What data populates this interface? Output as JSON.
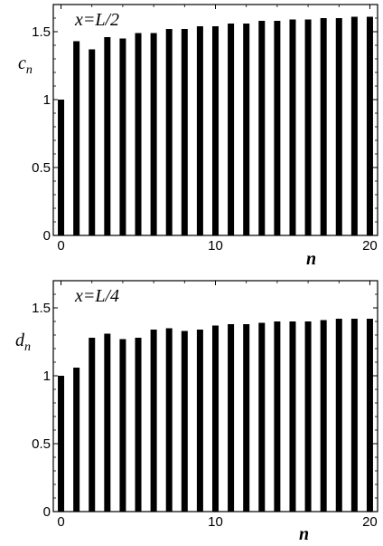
{
  "chart_data": [
    {
      "type": "bar",
      "annotation": "x=L/2",
      "ylabel": {
        "main": "c",
        "sub": "n"
      },
      "xlabel": "n",
      "x": [
        0,
        1,
        2,
        3,
        4,
        5,
        6,
        7,
        8,
        9,
        10,
        11,
        12,
        13,
        14,
        15,
        16,
        17,
        18,
        19,
        20
      ],
      "values": [
        1.0,
        1.43,
        1.37,
        1.46,
        1.45,
        1.49,
        1.49,
        1.52,
        1.52,
        1.54,
        1.54,
        1.56,
        1.56,
        1.58,
        1.58,
        1.59,
        1.59,
        1.6,
        1.6,
        1.61,
        1.61
      ],
      "xlim": [
        -0.5,
        20.5
      ],
      "ylim": [
        0,
        1.7
      ],
      "xticks": [
        0,
        10,
        20
      ],
      "yticks": [
        0,
        0.5,
        1,
        1.5
      ],
      "xtick_labels": [
        "0",
        "10",
        "20"
      ],
      "ytick_labels": [
        "0",
        "0.5",
        "1",
        "1.5"
      ],
      "grid": false
    },
    {
      "type": "bar",
      "annotation": "x=L/4",
      "ylabel": {
        "main": "d",
        "sub": "n"
      },
      "xlabel": "n",
      "x": [
        0,
        1,
        2,
        3,
        4,
        5,
        6,
        7,
        8,
        9,
        10,
        11,
        12,
        13,
        14,
        15,
        16,
        17,
        18,
        19,
        20
      ],
      "values": [
        1.0,
        1.06,
        1.28,
        1.31,
        1.27,
        1.28,
        1.34,
        1.35,
        1.33,
        1.34,
        1.37,
        1.38,
        1.38,
        1.39,
        1.4,
        1.4,
        1.4,
        1.41,
        1.42,
        1.42,
        1.42
      ],
      "xlim": [
        -0.5,
        20.5
      ],
      "ylim": [
        0,
        1.7
      ],
      "xticks": [
        0,
        10,
        20
      ],
      "yticks": [
        0,
        0.5,
        1,
        1.5
      ],
      "xtick_labels": [
        "0",
        "10",
        "20"
      ],
      "ytick_labels": [
        "0",
        "0.5",
        "1",
        "1.5"
      ],
      "grid": false
    }
  ]
}
